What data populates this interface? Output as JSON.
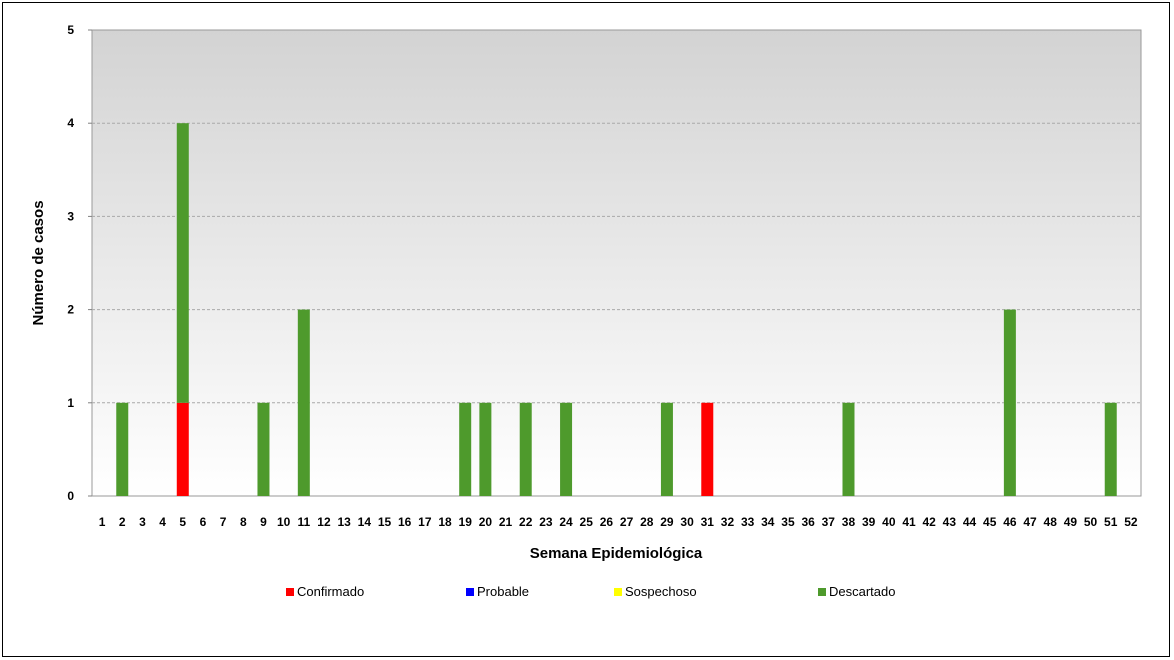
{
  "chart_data": {
    "type": "bar",
    "stacked": true,
    "xlabel": "Semana Epidemiológica",
    "ylabel": "Número de casos",
    "ylim": [
      0,
      5
    ],
    "yticks": [
      "0",
      "1",
      "2",
      "3",
      "4",
      "5"
    ],
    "grid": true,
    "legend_position": "bottom",
    "categories": [
      "1",
      "2",
      "3",
      "4",
      "5",
      "6",
      "7",
      "8",
      "9",
      "10",
      "11",
      "12",
      "13",
      "14",
      "15",
      "16",
      "17",
      "18",
      "19",
      "20",
      "21",
      "22",
      "23",
      "24",
      "25",
      "26",
      "27",
      "28",
      "29",
      "30",
      "31",
      "32",
      "33",
      "34",
      "35",
      "36",
      "37",
      "38",
      "39",
      "40",
      "41",
      "42",
      "43",
      "44",
      "45",
      "46",
      "47",
      "48",
      "49",
      "50",
      "51",
      "52"
    ],
    "series": [
      {
        "name": "Confirmado",
        "color": "#ff0000",
        "values": [
          0,
          0,
          0,
          0,
          1,
          0,
          0,
          0,
          0,
          0,
          0,
          0,
          0,
          0,
          0,
          0,
          0,
          0,
          0,
          0,
          0,
          0,
          0,
          0,
          0,
          0,
          0,
          0,
          0,
          0,
          1,
          0,
          0,
          0,
          0,
          0,
          0,
          0,
          0,
          0,
          0,
          0,
          0,
          0,
          0,
          0,
          0,
          0,
          0,
          0,
          0,
          0
        ]
      },
      {
        "name": "Probable",
        "color": "#0000ff",
        "values": [
          0,
          0,
          0,
          0,
          0,
          0,
          0,
          0,
          0,
          0,
          0,
          0,
          0,
          0,
          0,
          0,
          0,
          0,
          0,
          0,
          0,
          0,
          0,
          0,
          0,
          0,
          0,
          0,
          0,
          0,
          0,
          0,
          0,
          0,
          0,
          0,
          0,
          0,
          0,
          0,
          0,
          0,
          0,
          0,
          0,
          0,
          0,
          0,
          0,
          0,
          0,
          0
        ]
      },
      {
        "name": "Sospechoso",
        "color": "#ffff00",
        "values": [
          0,
          0,
          0,
          0,
          0,
          0,
          0,
          0,
          0,
          0,
          0,
          0,
          0,
          0,
          0,
          0,
          0,
          0,
          0,
          0,
          0,
          0,
          0,
          0,
          0,
          0,
          0,
          0,
          0,
          0,
          0,
          0,
          0,
          0,
          0,
          0,
          0,
          0,
          0,
          0,
          0,
          0,
          0,
          0,
          0,
          0,
          0,
          0,
          0,
          0,
          0,
          0
        ]
      },
      {
        "name": "Descartado",
        "color": "#4e9a2c",
        "values": [
          0,
          1,
          0,
          0,
          3,
          0,
          0,
          0,
          1,
          0,
          2,
          0,
          0,
          0,
          0,
          0,
          0,
          0,
          1,
          1,
          0,
          1,
          0,
          1,
          0,
          0,
          0,
          0,
          1,
          0,
          0,
          0,
          0,
          0,
          0,
          0,
          0,
          1,
          0,
          0,
          0,
          0,
          0,
          0,
          0,
          2,
          0,
          0,
          0,
          0,
          1,
          0
        ]
      }
    ]
  }
}
